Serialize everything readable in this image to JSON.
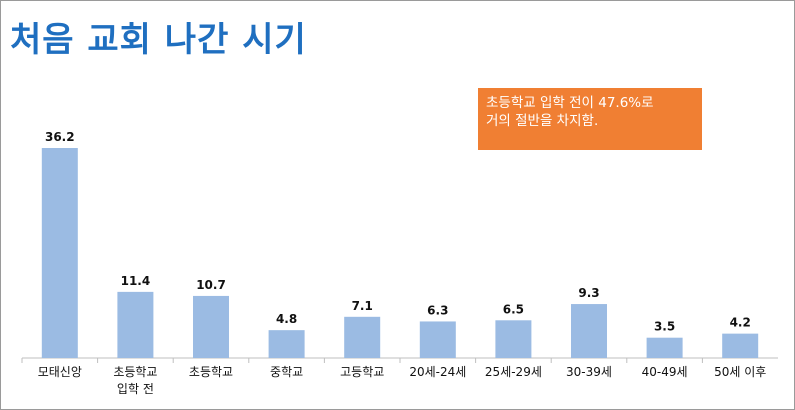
{
  "chart_data": {
    "type": "bar",
    "title": "처음 교회 나간 시기",
    "categories": [
      "모태신앙",
      "초등학교\n입학 전",
      "초등학교",
      "중학교",
      "고등학교",
      "20세-24세",
      "25세-29세",
      "30-39세",
      "40-49세",
      "50세 이후"
    ],
    "values": [
      36.2,
      11.4,
      10.7,
      4.8,
      7.1,
      6.3,
      6.5,
      9.3,
      3.5,
      4.2
    ],
    "value_labels": [
      "36.2",
      "11.4",
      "10.7",
      "4.8",
      "7.1",
      "6.3",
      "6.5",
      "9.3",
      "3.5",
      "4.2"
    ],
    "ylim": [
      0,
      36.2
    ],
    "xlabel": "",
    "ylabel": "",
    "annotation": {
      "line1": "초등학교 입학 전이 47.6%로",
      "line2": "거의 절반을 차지함."
    },
    "colors": {
      "bar": "#9bbbe3",
      "title": "#1f6fc0",
      "callout": "#f07f33"
    }
  }
}
